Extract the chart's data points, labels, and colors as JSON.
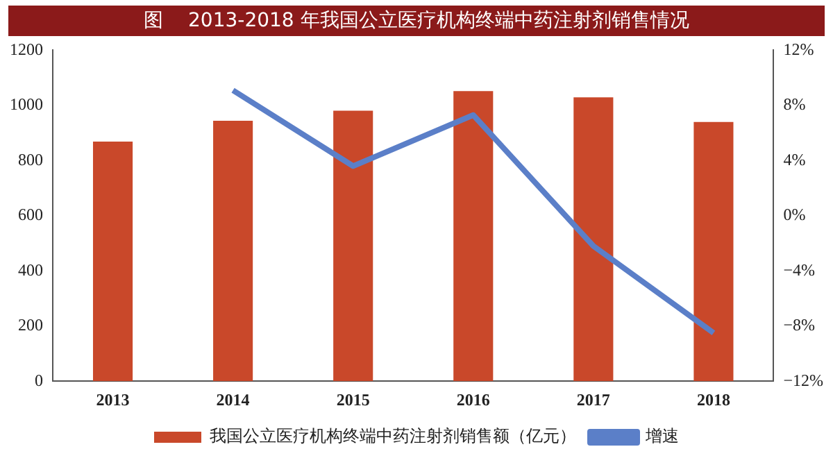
{
  "chart_data": {
    "type": "bar",
    "title": "图    2013-2018 年我国公立医疗机构终端中药注射剂销售情况",
    "categories": [
      "2013",
      "2014",
      "2015",
      "2016",
      "2017",
      "2018"
    ],
    "series": [
      {
        "name": "我国公立医疗机构终端中药注射剂销售额（亿元）",
        "color": "#c9482a",
        "values": [
          869,
          944,
          981,
          1052,
          1029,
          940
        ]
      },
      {
        "name": "增速",
        "type": "line",
        "axis": "y2",
        "color": "#5b7fc8",
        "values": [
          null,
          9.1,
          3.6,
          7.3,
          -2.2,
          -8.5
        ]
      }
    ],
    "ylim": [
      0,
      1200
    ],
    "yticks": [
      0,
      200,
      400,
      600,
      800,
      1000,
      1200
    ],
    "y2lim": [
      -12,
      12
    ],
    "y2ticks": [
      {
        "value": -12,
        "label": "−12%"
      },
      {
        "value": -8,
        "label": "−8%"
      },
      {
        "value": -4,
        "label": "−4%"
      },
      {
        "value": 0,
        "label": "0%"
      },
      {
        "value": 4,
        "label": "4%"
      },
      {
        "value": 8,
        "label": "8%"
      },
      {
        "value": 12,
        "label": "12%"
      }
    ],
    "grid": false,
    "legend": "bottom",
    "marker": "none"
  }
}
